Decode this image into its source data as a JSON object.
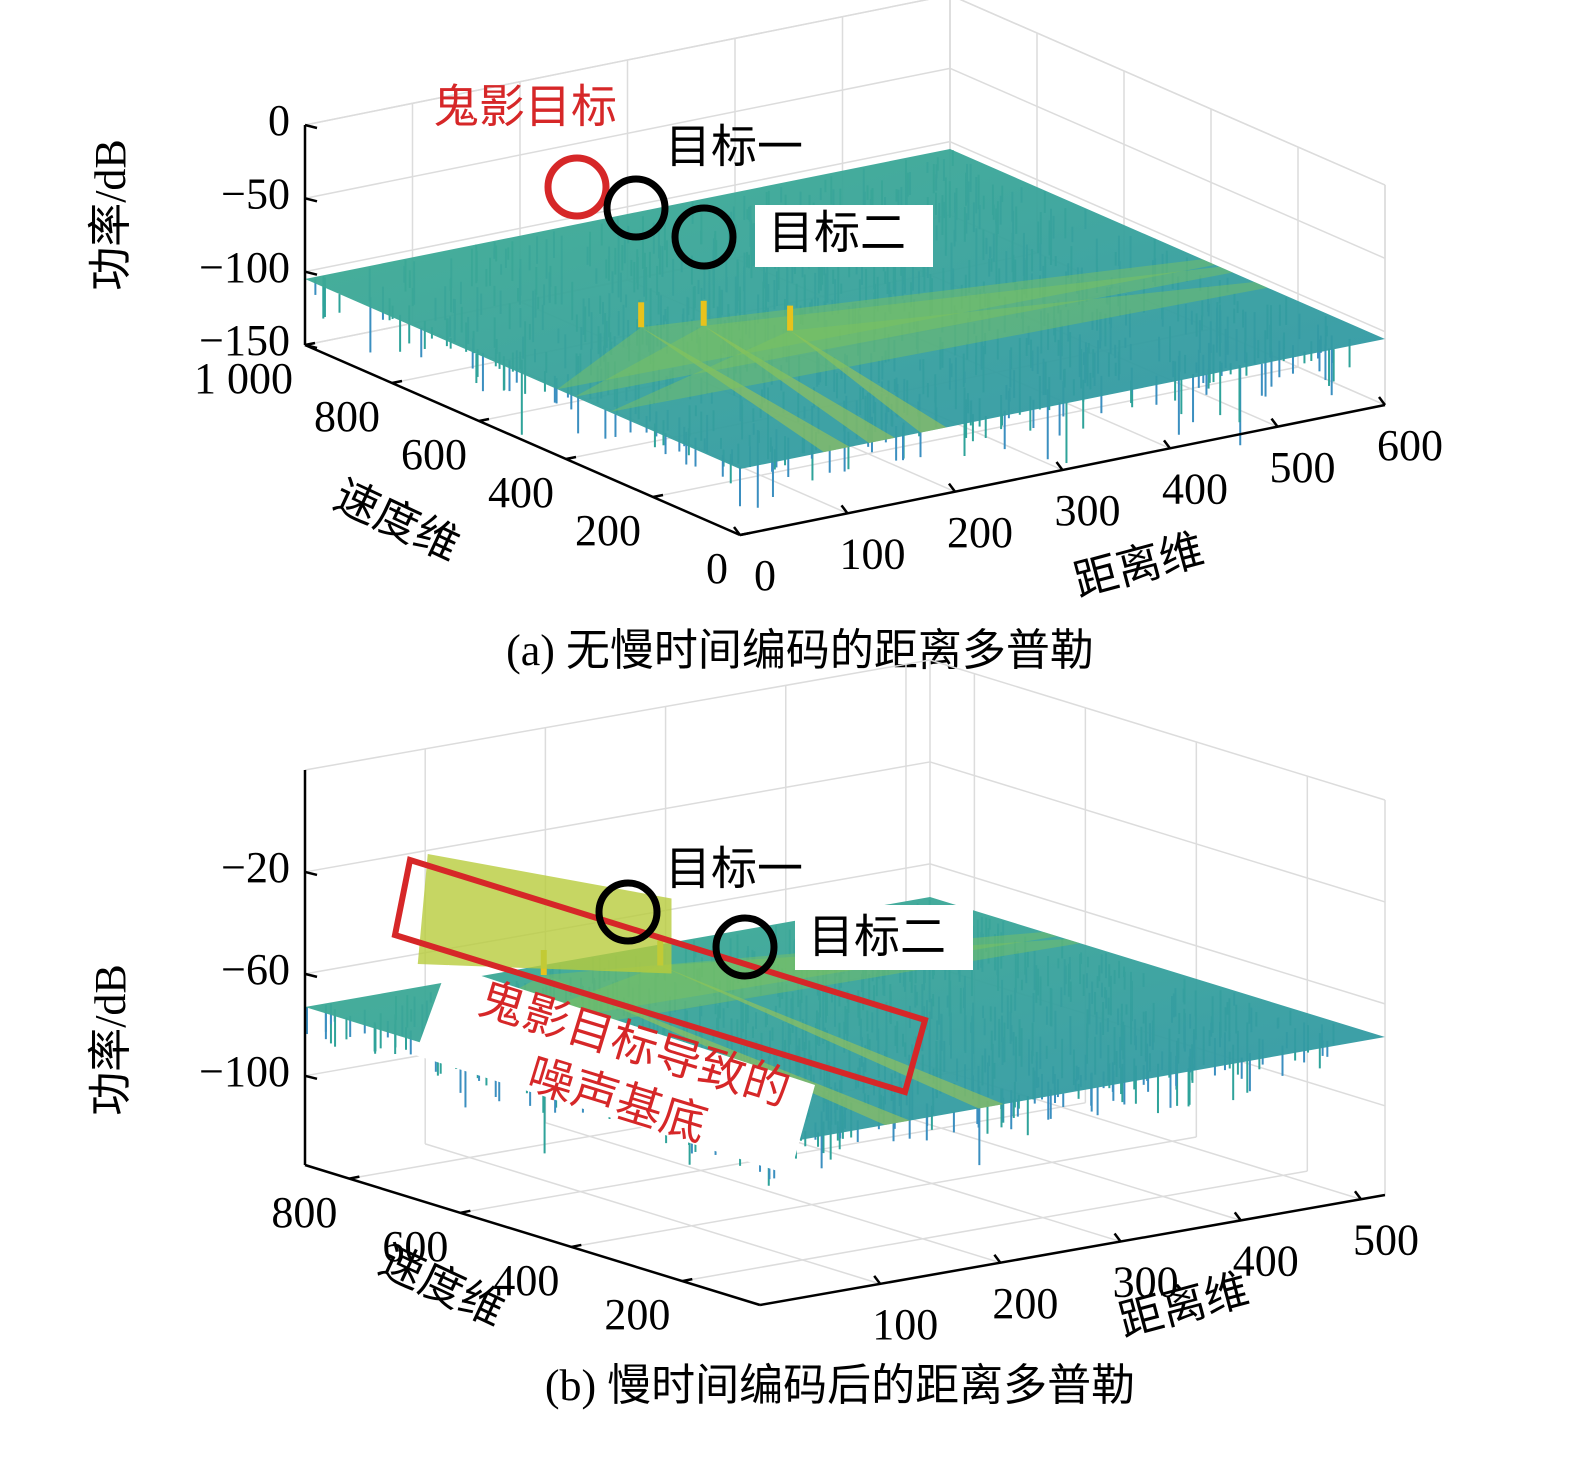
{
  "chart_data": [
    {
      "type": "surface3d",
      "caption": "(a) 无慢时间编码的距离多普勒",
      "zlabel": "功率/dB",
      "xlabel": "距离维",
      "ylabel": "速度维",
      "xlim": [
        0,
        600
      ],
      "xticks": [
        0,
        100,
        200,
        300,
        400,
        500,
        600
      ],
      "ylim": [
        0,
        1000
      ],
      "yticks": [
        0,
        200,
        400,
        600,
        800,
        {
          "value": 1000,
          "label": "1 000"
        }
      ],
      "zlim": [
        -150,
        0
      ],
      "zticks": [
        0,
        {
          "value": -50,
          "label": "−50"
        },
        {
          "value": -100,
          "label": "−100"
        },
        {
          "value": -150,
          "label": "−150"
        }
      ],
      "grid": true,
      "annotations": [
        {
          "text": "鬼影目标",
          "color": "#d62728"
        },
        {
          "text": "目标一",
          "color": "#000000"
        },
        {
          "text": "目标二",
          "color": "#000000"
        }
      ]
    },
    {
      "type": "surface3d",
      "caption": "(b) 慢时间编码后的距离多普勒",
      "zlabel": "功率/dB",
      "xlabel": "距离维",
      "ylabel": "速度维",
      "xlim": [
        0,
        520
      ],
      "xticks": [
        100,
        200,
        300,
        400,
        500
      ],
      "ylim": [
        60,
        880
      ],
      "yticks": [
        200,
        400,
        600,
        800
      ],
      "zlim": [
        -135,
        20
      ],
      "zticks": [
        {
          "value": -20,
          "label": "−20"
        },
        {
          "value": -60,
          "label": "−60"
        },
        {
          "value": -100,
          "label": "−100"
        }
      ],
      "grid": true,
      "annotations": [
        {
          "text": "目标一",
          "color": "#000000"
        },
        {
          "text": "目标二",
          "color": "#000000"
        },
        {
          "lines": [
            "鬼影目标导致的",
            "噪声基底"
          ],
          "color": "#d62728"
        }
      ]
    }
  ]
}
